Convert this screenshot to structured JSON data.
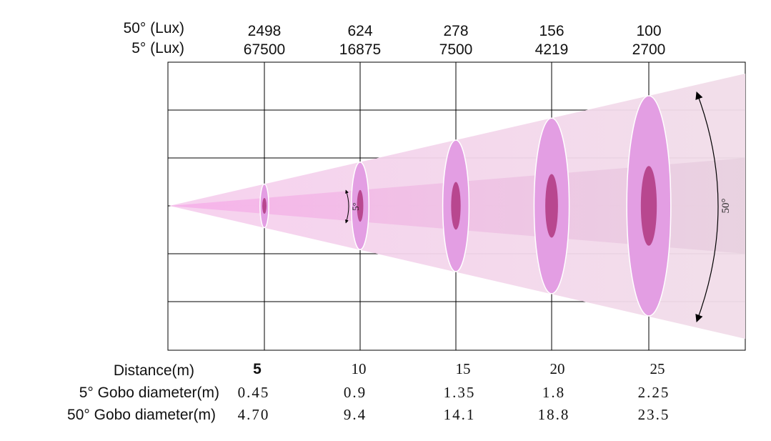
{
  "header": {
    "label_50": "50° (Lux)",
    "label_5": "5° (Lux)"
  },
  "footer": {
    "distance_label": "Distance(m)",
    "gobo5_label": "5° Gobo diameter(m)",
    "gobo50_label": "50° Gobo diameter(m)"
  },
  "beam_labels": {
    "narrow": "5°",
    "wide": "50°"
  },
  "colors": {
    "wide_beam": "#f4d3ec",
    "narrow_beam": "#f4b8e6",
    "wide_spot": "#e39ee3",
    "narrow_spot": "#b8478f",
    "grid": "#000000"
  },
  "chart_data": {
    "type": "table",
    "distances": [
      "5",
      "10",
      "15",
      "20",
      "25"
    ],
    "lux_50": [
      "2498",
      "624",
      "278",
      "156",
      "100"
    ],
    "lux_5": [
      "67500",
      "16875",
      "7500",
      "4219",
      "2700"
    ],
    "gobo_5": [
      "0.45",
      "0.9",
      "1.35",
      "1.8",
      "2.25"
    ],
    "gobo_50": [
      "4.70",
      "9.4",
      "14.1",
      "18.8",
      "23.5"
    ]
  }
}
